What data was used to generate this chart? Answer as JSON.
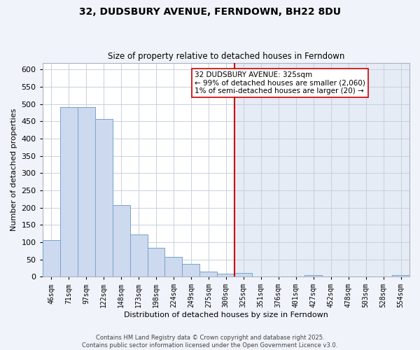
{
  "title": "32, DUDSBURY AVENUE, FERNDOWN, BH22 8DU",
  "subtitle": "Size of property relative to detached houses in Ferndown",
  "xlabel": "Distribution of detached houses by size in Ferndown",
  "ylabel": "Number of detached properties",
  "bar_labels": [
    "46sqm",
    "71sqm",
    "97sqm",
    "122sqm",
    "148sqm",
    "173sqm",
    "198sqm",
    "224sqm",
    "249sqm",
    "275sqm",
    "300sqm",
    "325sqm",
    "351sqm",
    "376sqm",
    "401sqm",
    "427sqm",
    "452sqm",
    "478sqm",
    "503sqm",
    "528sqm",
    "554sqm"
  ],
  "bar_values": [
    105,
    492,
    492,
    457,
    208,
    123,
    83,
    58,
    37,
    15,
    8,
    10,
    0,
    0,
    0,
    5,
    0,
    0,
    0,
    0,
    5
  ],
  "bar_color": "#cdd9ee",
  "bar_edge_color": "#6fa0cc",
  "vline_x_index": 11,
  "vline_color": "#cc0000",
  "ylim_max": 620,
  "yticks": [
    0,
    50,
    100,
    150,
    200,
    250,
    300,
    350,
    400,
    450,
    500,
    550,
    600
  ],
  "annotation_title": "32 DUDSBURY AVENUE: 325sqm",
  "annotation_line1": "← 99% of detached houses are smaller (2,060)",
  "annotation_line2": "1% of semi-detached houses are larger (20) →",
  "footer_line1": "Contains HM Land Registry data © Crown copyright and database right 2025.",
  "footer_line2": "Contains public sector information licensed under the Open Government Licence v3.0.",
  "grid_color": "#c8d0de",
  "bg_left_color": "#ffffff",
  "bg_right_color": "#e6ecf5",
  "figure_bg": "#f0f4fa"
}
